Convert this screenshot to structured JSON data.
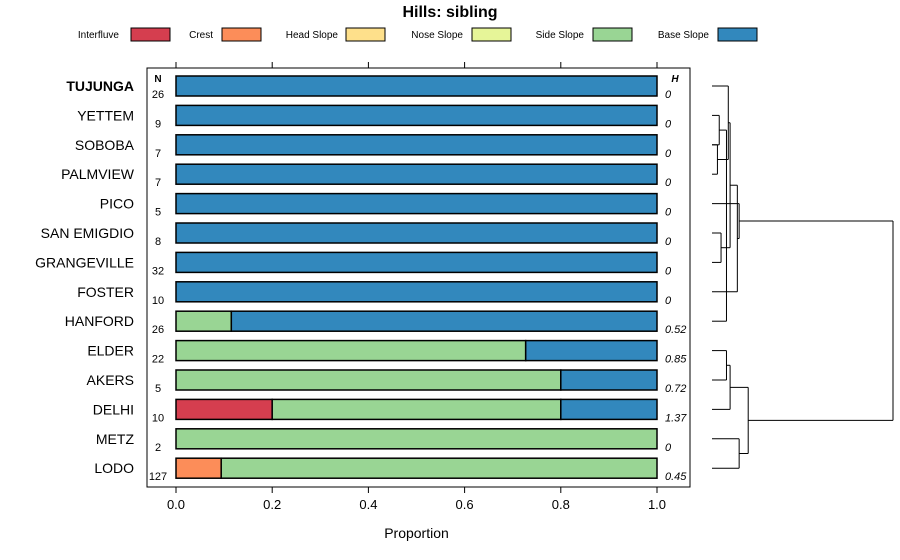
{
  "chart_data": {
    "type": "bar",
    "orientation": "horizontal",
    "stacked": true,
    "title": "Hills: sibling",
    "xlabel": "Proportion",
    "xlim": [
      0,
      1
    ],
    "xticks": [
      "0.0",
      "0.2",
      "0.4",
      "0.6",
      "0.8",
      "1.0"
    ],
    "count_header": "N",
    "entropy_header": "H",
    "legend_position": "top",
    "legend": [
      {
        "name": "Interfluve",
        "color": "#d53e4f"
      },
      {
        "name": "Crest",
        "color": "#fc8d59"
      },
      {
        "name": "Head Slope",
        "color": "#fee08b"
      },
      {
        "name": "Nose Slope",
        "color": "#e6f598"
      },
      {
        "name": "Side Slope",
        "color": "#99d594"
      },
      {
        "name": "Base Slope",
        "color": "#3288bd"
      }
    ],
    "rows": [
      {
        "label": "TUJUNGA",
        "bold": true,
        "n": "26",
        "h": "0",
        "values": [
          0,
          0,
          0,
          0,
          0,
          1
        ]
      },
      {
        "label": "YETTEM",
        "bold": false,
        "n": "9",
        "h": "0",
        "values": [
          0,
          0,
          0,
          0,
          0,
          1
        ]
      },
      {
        "label": "SOBOBA",
        "bold": false,
        "n": "7",
        "h": "0",
        "values": [
          0,
          0,
          0,
          0,
          0,
          1
        ]
      },
      {
        "label": "PALMVIEW",
        "bold": false,
        "n": "7",
        "h": "0",
        "values": [
          0,
          0,
          0,
          0,
          0,
          1
        ]
      },
      {
        "label": "PICO",
        "bold": false,
        "n": "5",
        "h": "0",
        "values": [
          0,
          0,
          0,
          0,
          0,
          1
        ]
      },
      {
        "label": "SAN EMIGDIO",
        "bold": false,
        "n": "8",
        "h": "0",
        "values": [
          0,
          0,
          0,
          0,
          0,
          1
        ]
      },
      {
        "label": "GRANGEVILLE",
        "bold": false,
        "n": "32",
        "h": "0",
        "values": [
          0,
          0,
          0,
          0,
          0,
          1
        ]
      },
      {
        "label": "FOSTER",
        "bold": false,
        "n": "10",
        "h": "0",
        "values": [
          0,
          0,
          0,
          0,
          0,
          1
        ]
      },
      {
        "label": "HANFORD",
        "bold": false,
        "n": "26",
        "h": "0.52",
        "values": [
          0,
          0,
          0,
          0,
          0.115,
          0.885
        ]
      },
      {
        "label": "ELDER",
        "bold": false,
        "n": "22",
        "h": "0.85",
        "values": [
          0,
          0,
          0,
          0,
          0.727,
          0.273
        ]
      },
      {
        "label": "AKERS",
        "bold": false,
        "n": "5",
        "h": "0.72",
        "values": [
          0,
          0,
          0,
          0,
          0.8,
          0.2
        ]
      },
      {
        "label": "DELHI",
        "bold": false,
        "n": "10",
        "h": "1.37",
        "values": [
          0.2,
          0,
          0,
          0,
          0.6,
          0.2
        ]
      },
      {
        "label": "METZ",
        "bold": false,
        "n": "2",
        "h": "0",
        "values": [
          0,
          0,
          0,
          0,
          1,
          0
        ]
      },
      {
        "label": "LODO",
        "bold": false,
        "n": "127",
        "h": "0.45",
        "values": [
          0,
          0.094,
          0,
          0,
          0.906,
          0
        ]
      }
    ],
    "dendrogram": [
      {
        "a": 6,
        "b": 5,
        "height": 0.05
      },
      {
        "a": 2,
        "b": 3,
        "height": 0.03
      },
      {
        "a": 1,
        "b": 2,
        "height": 0.04
      },
      {
        "a": 12,
        "b": 13,
        "height": 0.15
      },
      {
        "a": 9,
        "b": 10,
        "height": 0.08
      },
      {
        "a": 8,
        "b": -3,
        "height": 0.08
      },
      {
        "a": 0,
        "b": -2,
        "height": 0.09
      },
      {
        "a": -1,
        "b": -7,
        "height": 0.1
      },
      {
        "a": 7,
        "b": -8,
        "height": 0.14
      },
      {
        "a": 4,
        "b": -9,
        "height": 0.15
      },
      {
        "a": 11,
        "b": -5,
        "height": 0.1
      },
      {
        "a": -11,
        "b": -4,
        "height": 0.2
      },
      {
        "a": -10,
        "b": -12,
        "height": 1.0
      }
    ]
  }
}
